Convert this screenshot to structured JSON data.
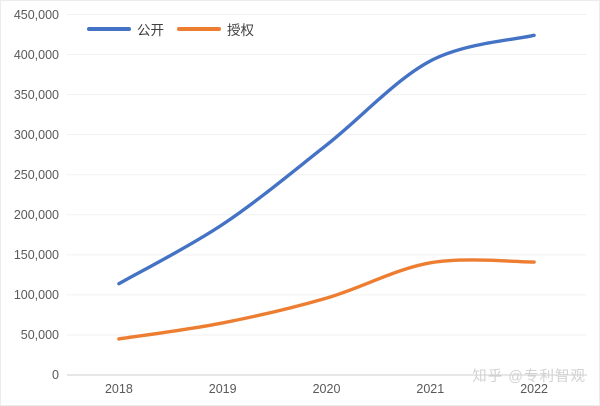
{
  "watermark": "知乎 @专利智观",
  "chart_data": {
    "type": "line",
    "title": "",
    "xlabel": "",
    "ylabel": "",
    "categories": [
      "2018",
      "2019",
      "2020",
      "2021",
      "2022"
    ],
    "series": [
      {
        "name": "公开",
        "color": "#4472C4",
        "values": [
          114000,
          188000,
          287000,
          392000,
          424000
        ]
      },
      {
        "name": "授权",
        "color": "#ED7D31",
        "values": [
          45000,
          65000,
          96000,
          140000,
          141000
        ]
      }
    ],
    "ylim": [
      0,
      450000
    ],
    "ytick_step": 50000,
    "ytick_labels": [
      "0",
      "50,000",
      "100,000",
      "150,000",
      "200,000",
      "250,000",
      "300,000",
      "350,000",
      "400,000",
      "450,000"
    ],
    "grid": true,
    "smooth": true,
    "legend_position": "top",
    "colors": {
      "gridline": "#f1f1f1",
      "axis_line": "#cfcfcf",
      "tick_text": "#595959",
      "legend_text": "#404040",
      "watermark_text": "#d2d2d2"
    }
  }
}
